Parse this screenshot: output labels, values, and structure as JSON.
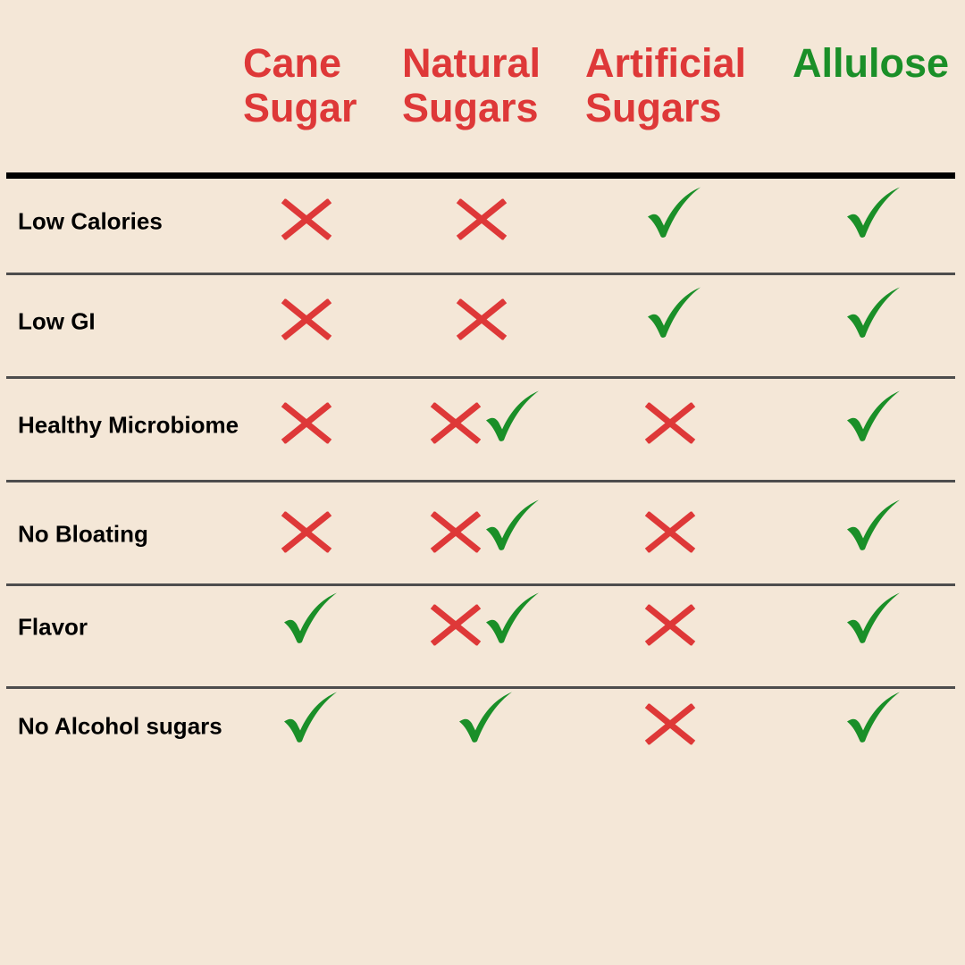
{
  "colors": {
    "background": "#f4e7d7",
    "negative": "#de3838",
    "positive": "#1a8f28",
    "rule": "#4d4d4d"
  },
  "columns": [
    {
      "label": "Cane\nSugar",
      "highlight": false
    },
    {
      "label": "Natural\nSugars",
      "highlight": false
    },
    {
      "label": "Artificial\nSugars",
      "highlight": false
    },
    {
      "label": "Allulose",
      "highlight": true
    }
  ],
  "rows": [
    {
      "label": "Low Calories",
      "cells": [
        "x",
        "x",
        "check",
        "check"
      ]
    },
    {
      "label": "Low GI",
      "cells": [
        "x",
        "x",
        "check",
        "check"
      ]
    },
    {
      "label": "Healthy Microbiome",
      "cells": [
        "x",
        "x-check",
        "x",
        "check"
      ]
    },
    {
      "label": "No Bloating",
      "cells": [
        "x",
        "x-check",
        "x",
        "check"
      ]
    },
    {
      "label": "Flavor",
      "cells": [
        "check",
        "x-check",
        "x",
        "check"
      ]
    },
    {
      "label": "No Alcohol sugars",
      "cells": [
        "check",
        "check",
        "x",
        "check"
      ]
    }
  ],
  "icons": {
    "x": "cross-icon",
    "check": "checkmark-icon",
    "x-check": "cross-and-checkmark-icons"
  }
}
